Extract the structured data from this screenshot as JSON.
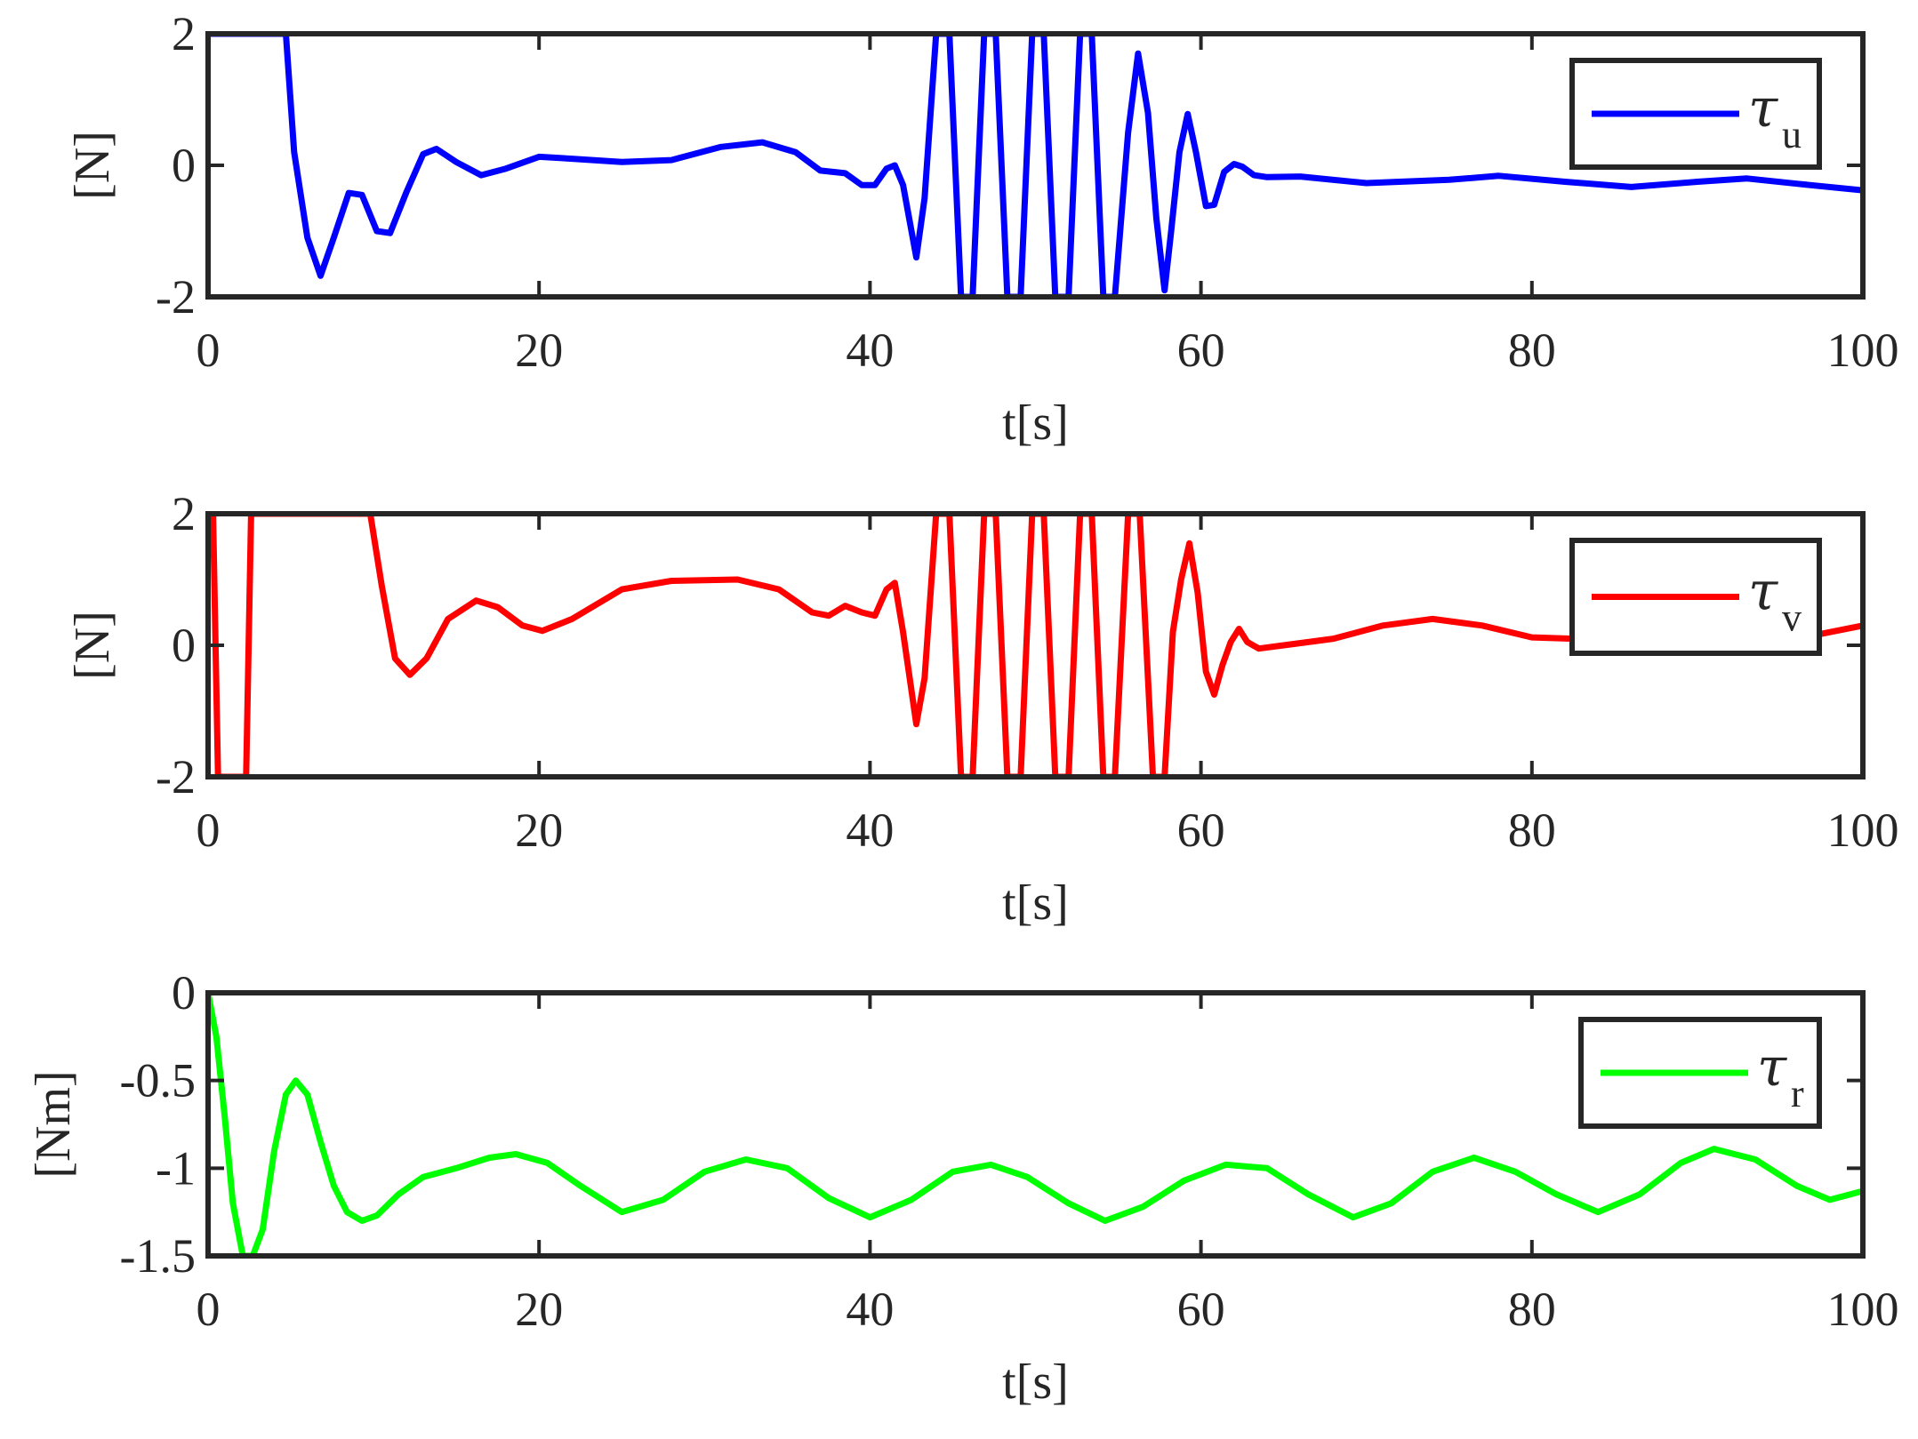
{
  "chart_data": [
    {
      "type": "line",
      "xlabel": "t[s]",
      "ylabel": "[N]",
      "xlim": [
        0,
        100
      ],
      "ylim": [
        -2,
        2
      ],
      "xticks": [
        0,
        20,
        40,
        60,
        80,
        100
      ],
      "xtick_labels": [
        "0",
        "20",
        "40",
        "60",
        "80",
        "100"
      ],
      "yticks": [
        -2,
        0,
        2
      ],
      "ytick_labels": [
        "-2",
        "0",
        "2"
      ],
      "legend_position": "top-right",
      "grid": false,
      "series": [
        {
          "name": "τu",
          "legend_symbol": "τ",
          "legend_subscript": "u",
          "color": "#0000ff",
          "x": [
            0,
            4.7,
            5.2,
            6,
            6.8,
            7.6,
            8.5,
            9.3,
            10.2,
            11,
            12,
            13,
            13.8,
            15,
            16.5,
            18,
            20,
            22,
            25,
            28,
            31,
            33.5,
            35.5,
            37,
            38.5,
            39.5,
            40.3,
            41,
            41.5,
            42,
            42.8,
            43.3,
            44,
            44.8,
            45.5,
            46.2,
            46.9,
            47.6,
            48.3,
            49.1,
            49.8,
            50.5,
            51.2,
            52,
            52.7,
            53.4,
            54.1,
            54.8,
            55.6,
            56.2,
            56.8,
            57.3,
            57.8,
            58.2,
            58.7,
            59.2,
            59.7,
            60.3,
            60.8,
            61.4,
            62,
            62.5,
            63.2,
            64,
            66,
            70,
            75,
            78,
            82,
            86,
            90,
            93,
            96,
            100
          ],
          "y": [
            2,
            2,
            0.2,
            -1.1,
            -1.68,
            -1.1,
            -0.42,
            -0.45,
            -1.0,
            -1.03,
            -0.4,
            0.17,
            0.25,
            0.05,
            -0.15,
            -0.05,
            0.13,
            0.1,
            0.05,
            0.08,
            0.28,
            0.35,
            0.2,
            -0.08,
            -0.12,
            -0.3,
            -0.3,
            -0.05,
            0.0,
            -0.3,
            -1.4,
            -0.5,
            2,
            2,
            -2,
            -2,
            2,
            2,
            -2,
            -2,
            2,
            2,
            -2,
            -2,
            2,
            2,
            -2,
            -2,
            0.5,
            1.7,
            0.8,
            -0.8,
            -1.9,
            -1.0,
            0.2,
            0.78,
            0.2,
            -0.62,
            -0.6,
            -0.1,
            0.02,
            -0.02,
            -0.15,
            -0.18,
            -0.17,
            -0.27,
            -0.22,
            -0.16,
            -0.25,
            -0.33,
            -0.25,
            -0.2,
            -0.28,
            -0.38
          ]
        }
      ]
    },
    {
      "type": "line",
      "xlabel": "t[s]",
      "ylabel": "[N]",
      "xlim": [
        0,
        100
      ],
      "ylim": [
        -2,
        2
      ],
      "xticks": [
        0,
        20,
        40,
        60,
        80,
        100
      ],
      "xtick_labels": [
        "0",
        "20",
        "40",
        "60",
        "80",
        "100"
      ],
      "yticks": [
        -2,
        0,
        2
      ],
      "ytick_labels": [
        "-2",
        "0",
        "2"
      ],
      "legend_position": "top-right",
      "grid": false,
      "series": [
        {
          "name": "τv",
          "legend_symbol": "τ",
          "legend_subscript": "v",
          "color": "#ff0000",
          "x": [
            0,
            0.3,
            0.6,
            2.3,
            2.6,
            9.8,
            10.5,
            11.3,
            12.2,
            13.2,
            14.5,
            16.2,
            17.5,
            19,
            20.2,
            22,
            25,
            28,
            32,
            34.5,
            36.5,
            37.5,
            38.5,
            39.5,
            40.3,
            41,
            41.5,
            42,
            42.8,
            43.3,
            44,
            44.8,
            45.5,
            46.2,
            46.9,
            47.6,
            48.3,
            49.1,
            49.8,
            50.5,
            51.2,
            52,
            52.7,
            53.4,
            54.1,
            54.8,
            55.6,
            56.3,
            57.1,
            57.8,
            58.3,
            58.8,
            59.3,
            59.8,
            60.3,
            60.8,
            61.3,
            61.8,
            62.3,
            62.8,
            63.5,
            65,
            68,
            71,
            74,
            77,
            80,
            82.5,
            85,
            87,
            89,
            91,
            93,
            95,
            97,
            100
          ],
          "y": [
            2,
            2,
            -2,
            -2,
            2,
            2,
            0.9,
            -0.2,
            -0.45,
            -0.2,
            0.4,
            0.68,
            0.58,
            0.3,
            0.22,
            0.4,
            0.85,
            0.98,
            1.0,
            0.85,
            0.5,
            0.45,
            0.6,
            0.5,
            0.45,
            0.85,
            0.95,
            0.2,
            -1.2,
            -0.5,
            2,
            2,
            -2,
            -2,
            2,
            2,
            -2,
            -2,
            2,
            2,
            -2,
            -2,
            2,
            2,
            -2,
            -2,
            2,
            2,
            -2,
            -2,
            0.2,
            1.0,
            1.55,
            0.8,
            -0.4,
            -0.75,
            -0.3,
            0.05,
            0.25,
            0.05,
            -0.05,
            0.0,
            0.1,
            0.3,
            0.4,
            0.3,
            0.12,
            0.1,
            0.25,
            0.35,
            0.3,
            0.2,
            0.15,
            0.15,
            0.15,
            0.3
          ]
        }
      ]
    },
    {
      "type": "line",
      "xlabel": "t[s]",
      "ylabel": "[Nm]",
      "xlim": [
        0,
        100
      ],
      "ylim": [
        -1.5,
        0
      ],
      "xticks": [
        0,
        20,
        40,
        60,
        80,
        100
      ],
      "xtick_labels": [
        "0",
        "20",
        "40",
        "60",
        "80",
        "100"
      ],
      "yticks": [
        -1.5,
        -1,
        -0.5,
        0
      ],
      "ytick_labels": [
        "-1.5",
        "-1",
        "-0.5",
        "0"
      ],
      "legend_position": "top-right",
      "grid": false,
      "series": [
        {
          "name": "τr",
          "legend_symbol": "τ",
          "legend_subscript": "r",
          "color": "#00ff00",
          "x": [
            0,
            0.5,
            1,
            1.5,
            2.1,
            2.7,
            3.3,
            4.0,
            4.7,
            5.3,
            6.0,
            6.8,
            7.6,
            8.4,
            9.3,
            10.2,
            11.5,
            13,
            15,
            17,
            18.6,
            20.5,
            22.5,
            25,
            27.5,
            30,
            32.5,
            35,
            37.5,
            40,
            42.5,
            45,
            47.3,
            49.5,
            52,
            54.2,
            56.5,
            59,
            61.5,
            64,
            66.5,
            69.2,
            71.5,
            74,
            76.5,
            79,
            81.5,
            84,
            86.5,
            89,
            91,
            93.5,
            96,
            98,
            100
          ],
          "y": [
            0,
            -0.25,
            -0.7,
            -1.2,
            -1.5,
            -1.5,
            -1.35,
            -0.9,
            -0.58,
            -0.5,
            -0.58,
            -0.85,
            -1.1,
            -1.25,
            -1.3,
            -1.27,
            -1.15,
            -1.05,
            -1.0,
            -0.94,
            -0.92,
            -0.97,
            -1.1,
            -1.25,
            -1.18,
            -1.02,
            -0.95,
            -1.0,
            -1.17,
            -1.28,
            -1.18,
            -1.02,
            -0.98,
            -1.05,
            -1.2,
            -1.3,
            -1.22,
            -1.07,
            -0.98,
            -1.0,
            -1.15,
            -1.28,
            -1.2,
            -1.02,
            -0.94,
            -1.02,
            -1.15,
            -1.25,
            -1.15,
            -0.97,
            -0.89,
            -0.95,
            -1.1,
            -1.18,
            -1.13
          ]
        }
      ]
    }
  ]
}
